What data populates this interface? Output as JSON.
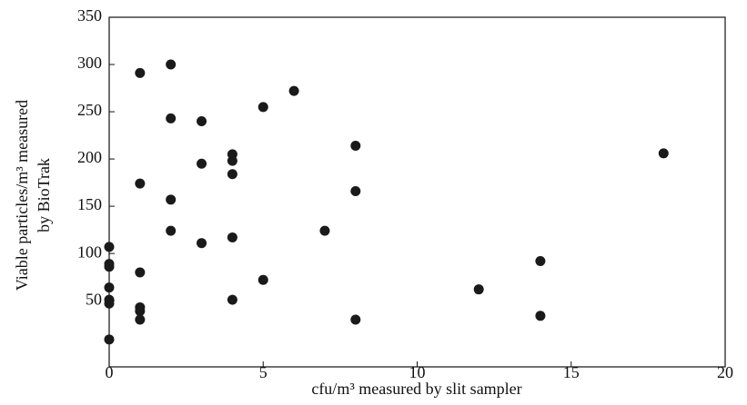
{
  "chart_data": {
    "type": "scatter",
    "xlabel": "cfu/m³ measured by slit sampler",
    "ylabel": [
      "Viable particles/m³ measured",
      "by BioTrak"
    ],
    "x": [
      0,
      0,
      0,
      0,
      0,
      0,
      0,
      1,
      1,
      1,
      1,
      1,
      1,
      2,
      2,
      2,
      2,
      3,
      3,
      3,
      4,
      4,
      4,
      4,
      4,
      5,
      5,
      6,
      7,
      8,
      8,
      8,
      12,
      14,
      14,
      18
    ],
    "values": [
      107,
      89,
      86,
      64,
      51,
      47,
      9,
      291,
      174,
      80,
      43,
      39,
      30,
      300,
      243,
      157,
      124,
      240,
      195,
      111,
      205,
      198,
      184,
      117,
      51,
      255,
      72,
      272,
      124,
      214,
      166,
      30,
      62,
      92,
      34,
      206
    ],
    "color": "#1a1a1a",
    "xlim": [
      0,
      20
    ],
    "xticks": [
      0,
      5,
      10,
      15,
      20
    ],
    "ylim": [
      -20,
      350
    ],
    "yticks": [
      50,
      100,
      150,
      200,
      250,
      300,
      350
    ]
  }
}
